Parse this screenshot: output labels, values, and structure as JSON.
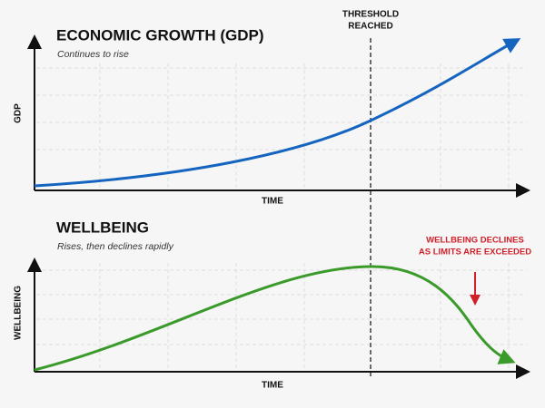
{
  "threshold": {
    "lines": [
      "THRESHOLD",
      "REACHED"
    ]
  },
  "top_panel": {
    "title": "ECONOMIC GROWTH (GDP)",
    "subtitle": "Continues to rise",
    "y_label": "GDP",
    "x_label": "TIME"
  },
  "bottom_panel": {
    "title": "WELLBEING",
    "subtitle": "Rises, then declines rapidly",
    "y_label": "WELLBEING",
    "x_label": "TIME"
  },
  "annotation": {
    "lines": [
      "WELLBEING DECLINES",
      "AS LIMITS ARE EXCEEDED"
    ]
  }
}
